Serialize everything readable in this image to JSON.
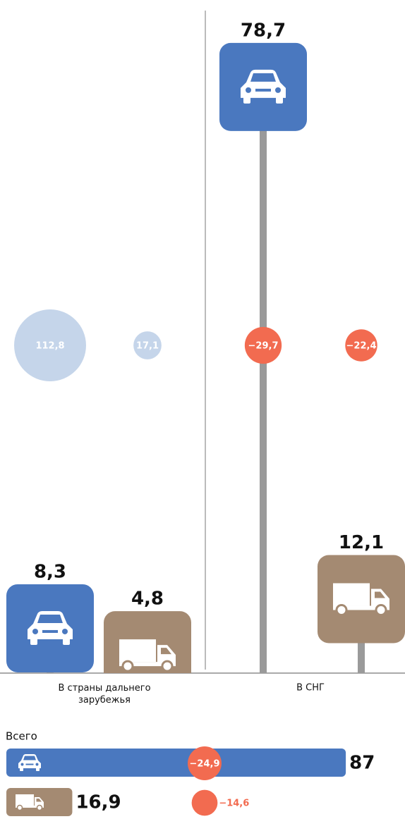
{
  "chart_data": {
    "type": "infographic",
    "categories": [
      "В страны дальнего зарубежья",
      "В СНГ"
    ],
    "positive_color": "#c5d5ea",
    "negative_color": "#f26b50",
    "series": [
      {
        "color": "#4a78bf",
        "values": [
          8.3,
          78.7
        ],
        "value_labels": [
          "8,3",
          "78,7"
        ],
        "change": [
          112.8,
          -29.7
        ],
        "change_labels": [
          "112,8",
          "−29,7"
        ]
      },
      {
        "color": "#a48a72",
        "values": [
          4.8,
          12.1
        ],
        "value_labels": [
          "4,8",
          "12,1"
        ],
        "change": [
          17.1,
          -22.4
        ],
        "change_labels": [
          "17,1",
          "−22,4"
        ]
      }
    ],
    "total": {
      "title": "Всего",
      "values": [
        87,
        16.9
      ],
      "value_labels": [
        "87",
        "16,9"
      ],
      "change": [
        -24.9,
        -14.6
      ],
      "change_labels": [
        "−24,9",
        "−14,6"
      ]
    }
  }
}
